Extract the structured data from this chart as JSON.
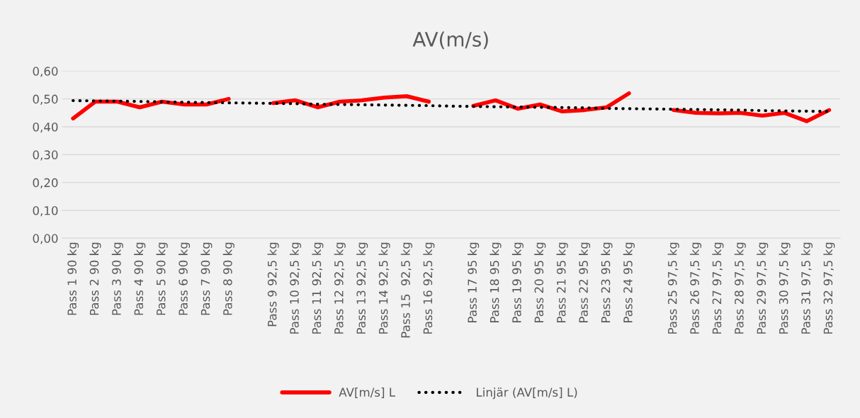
{
  "chart_data": {
    "type": "line",
    "title": "AV(m/s)",
    "categories": [
      "Pass 1 90 kg",
      "Pass 2 90 kg",
      "Pass 3 90 kg",
      "Pass 4 90 kg",
      "Pass 5 90 kg",
      "Pass 6 90 kg",
      "Pass 7 90 kg",
      "Pass 8 90 kg",
      null,
      "Pass 9 92,5 kg",
      "Pass 10 92,5 kg",
      "Pass 11 92,5 kg",
      "Pass 12 92,5 kg",
      "Pass 13 92,5 kg",
      "Pass 14 92,5 kg",
      "Pass 15  92,5 kg",
      "Pass 16 92,5 kg",
      null,
      "Pass 17 95 kg",
      "Pass 18 95 kg",
      "Pass 19 95 kg",
      "Pass 20 95 kg",
      "Pass 21 95 kg",
      "Pass 22 95 kg",
      "Pass 23 95 kg",
      "Pass 24 95 kg",
      null,
      "Pass 25 97,5 kg",
      "Pass 26 97,5 kg",
      "Pass 27 97,5 kg",
      "Pass 28 97,5 kg",
      "Pass 29 97,5 kg",
      "Pass 30 97,5 kg",
      "Pass 31 97,5 kg",
      "Pass 32 97,5 kg"
    ],
    "series": [
      {
        "name": "AV[m/s] L",
        "color": "#ff0000",
        "line_style": "solid",
        "values": [
          0.43,
          0.49,
          0.49,
          0.47,
          0.49,
          0.48,
          0.48,
          0.5,
          null,
          0.485,
          0.495,
          0.47,
          0.49,
          0.495,
          0.505,
          0.51,
          0.49,
          null,
          0.475,
          0.495,
          0.465,
          0.48,
          0.455,
          0.46,
          0.47,
          0.52,
          null,
          0.46,
          0.45,
          0.448,
          0.45,
          0.44,
          0.45,
          0.42,
          0.46
        ]
      },
      {
        "name": "Linjär (AV[m/s] L)",
        "color": "#000000",
        "line_style": "dotted",
        "values": [
          0.494,
          0.493,
          0.492,
          0.491,
          0.489,
          0.488,
          0.487,
          0.486,
          0.485,
          0.484,
          0.483,
          0.481,
          0.48,
          0.479,
          0.478,
          0.477,
          0.476,
          0.474,
          0.473,
          0.472,
          0.471,
          0.47,
          0.469,
          0.468,
          0.466,
          0.465,
          0.464,
          0.463,
          0.462,
          0.461,
          0.46,
          0.458,
          0.457,
          0.456,
          0.455
        ]
      }
    ],
    "ylim": [
      0,
      0.6
    ],
    "yticks": [
      {
        "value": 0,
        "label": "0,00"
      },
      {
        "value": 0.1,
        "label": "0,10"
      },
      {
        "value": 0.2,
        "label": "0,20"
      },
      {
        "value": 0.3,
        "label": "0,30"
      },
      {
        "value": 0.4,
        "label": "0,40"
      },
      {
        "value": 0.5,
        "label": "0,50"
      },
      {
        "value": 0.6,
        "label": "0,60"
      }
    ],
    "grid": "y",
    "legend": "bottom",
    "marker": "none"
  }
}
